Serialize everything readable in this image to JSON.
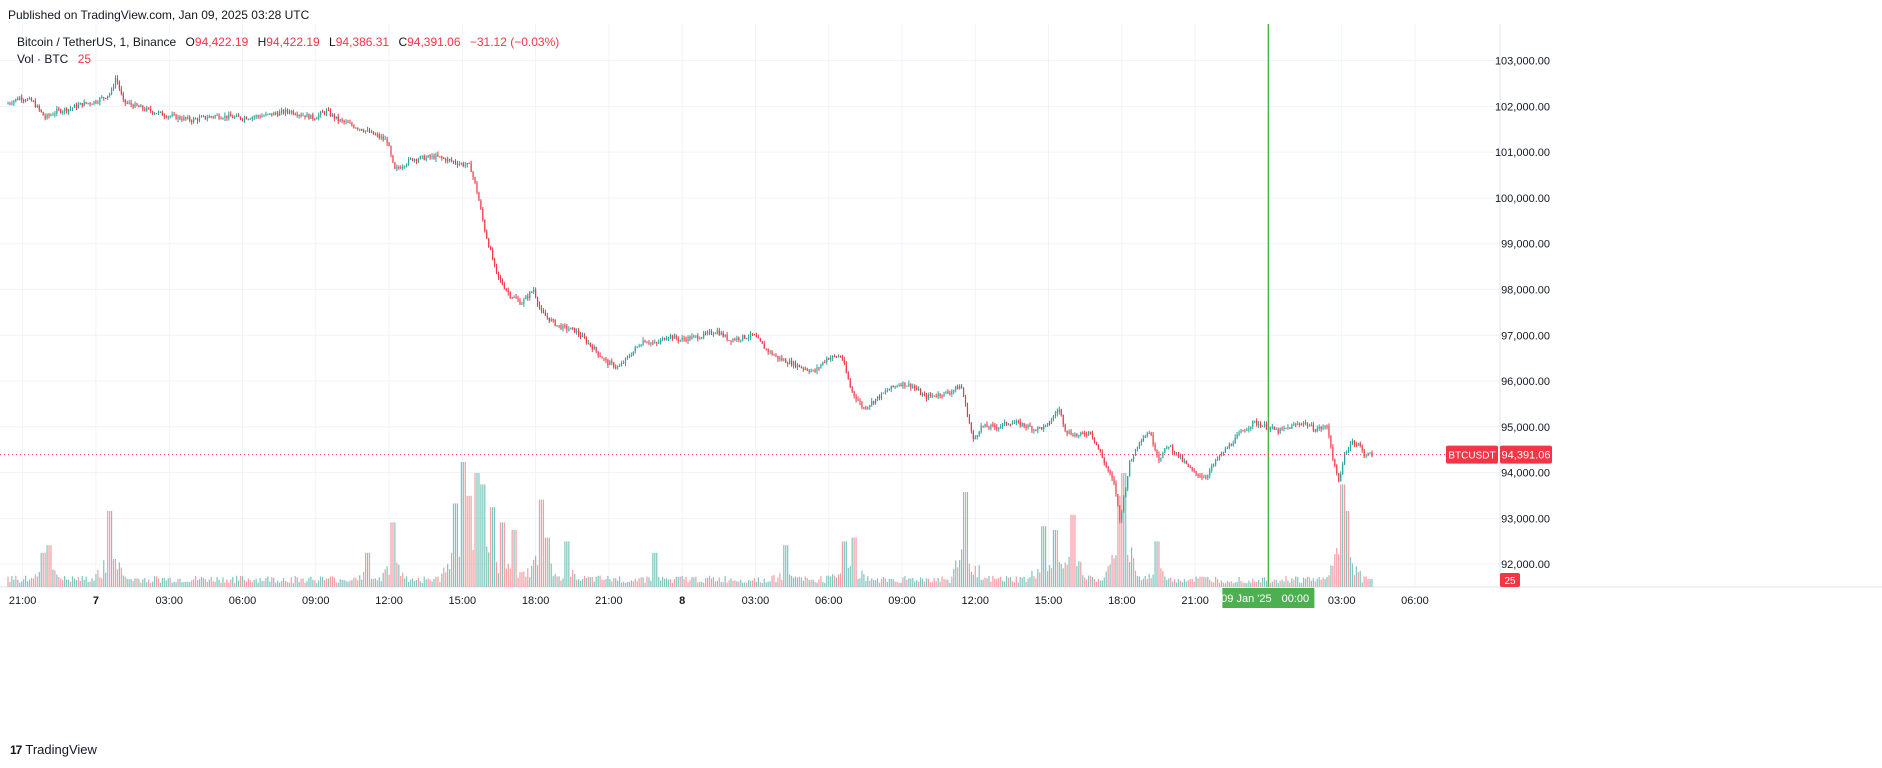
{
  "publish": {
    "text": "Published on TradingView.com, Jan 09, 2025 03:28 UTC"
  },
  "legend": {
    "symbol": "Bitcoin / TetherUS, 1, Binance",
    "o_label": "O",
    "o_value": "94,422.19",
    "h_label": "H",
    "h_value": "94,422.19",
    "l_label": "L",
    "l_value": "94,386.31",
    "c_label": "C",
    "c_value": "94,391.06",
    "change": "−31.12 (−0.03%)",
    "vol_label": "Vol · BTC",
    "vol_value": "25"
  },
  "price_tag": {
    "symbol": "BTCUSDT",
    "value": "94,391.06"
  },
  "vol_tag": "25",
  "crosshair_label": {
    "date": "09 Jan '25",
    "time": "00:00"
  },
  "footer": {
    "logo": "17",
    "brand": "TradingView"
  },
  "colors": {
    "up": "#26a69a",
    "down": "#f23645",
    "crosshair": "#4caf50",
    "grid": "#f0f3fa",
    "volume_up": "#7dc5bd",
    "volume_down": "#f59ba3"
  },
  "chart_data": {
    "type": "line",
    "title": "Bitcoin / TetherUS, 1, Binance",
    "ylabel": "",
    "xlabel": "",
    "ylim": [
      91500,
      103800
    ],
    "y_ticks": [
      {
        "value": 92000,
        "label": "92,000.00"
      },
      {
        "value": 93000,
        "label": "93,000.00"
      },
      {
        "value": 94000,
        "label": "94,000.00"
      },
      {
        "value": 95000,
        "label": "95,000.00"
      },
      {
        "value": 96000,
        "label": "96,000.00"
      },
      {
        "value": 97000,
        "label": "97,000.00"
      },
      {
        "value": 98000,
        "label": "98,000.00"
      },
      {
        "value": 99000,
        "label": "99,000.00"
      },
      {
        "value": 100000,
        "label": "100,000.00"
      },
      {
        "value": 101000,
        "label": "101,000.00"
      },
      {
        "value": 102000,
        "label": "102,000.00"
      },
      {
        "value": 103000,
        "label": "103,000.00"
      }
    ],
    "x_hours_from_start": true,
    "x_ticks": [
      {
        "hour": 0,
        "label": "21:00",
        "bold": false
      },
      {
        "hour": 3,
        "label": "7",
        "bold": true
      },
      {
        "hour": 6,
        "label": "03:00",
        "bold": false
      },
      {
        "hour": 9,
        "label": "06:00",
        "bold": false
      },
      {
        "hour": 12,
        "label": "09:00",
        "bold": false
      },
      {
        "hour": 15,
        "label": "12:00",
        "bold": false
      },
      {
        "hour": 18,
        "label": "15:00",
        "bold": false
      },
      {
        "hour": 21,
        "label": "18:00",
        "bold": false
      },
      {
        "hour": 24,
        "label": "21:00",
        "bold": false
      },
      {
        "hour": 27,
        "label": "8",
        "bold": true
      },
      {
        "hour": 30,
        "label": "03:00",
        "bold": false
      },
      {
        "hour": 33,
        "label": "06:00",
        "bold": false
      },
      {
        "hour": 36,
        "label": "09:00",
        "bold": false
      },
      {
        "hour": 39,
        "label": "12:00",
        "bold": false
      },
      {
        "hour": 42,
        "label": "15:00",
        "bold": false
      },
      {
        "hour": 45,
        "label": "18:00",
        "bold": false
      },
      {
        "hour": 48,
        "label": "21:00",
        "bold": false
      },
      {
        "hour": 54,
        "label": "03:00",
        "bold": false
      },
      {
        "hour": 57,
        "label": "06:00",
        "bold": false
      }
    ],
    "x_range_hours": [
      -0.6,
      60.4
    ],
    "crosshair_hour": 51,
    "last_price": 94391.06,
    "price_series": [
      [
        -0.6,
        102050
      ],
      [
        0,
        102200
      ],
      [
        0.5,
        102100
      ],
      [
        1,
        101750
      ],
      [
        1.5,
        101900
      ],
      [
        2,
        101950
      ],
      [
        2.5,
        102050
      ],
      [
        3,
        102100
      ],
      [
        3.4,
        102200
      ],
      [
        3.7,
        102300
      ],
      [
        3.9,
        102650
      ],
      [
        4.2,
        102100
      ],
      [
        5,
        101950
      ],
      [
        6,
        101800
      ],
      [
        7,
        101700
      ],
      [
        8,
        101800
      ],
      [
        9,
        101750
      ],
      [
        10,
        101800
      ],
      [
        11,
        101900
      ],
      [
        12,
        101750
      ],
      [
        12.5,
        101900
      ],
      [
        13,
        101700
      ],
      [
        14,
        101500
      ],
      [
        15,
        101250
      ],
      [
        15.3,
        100600
      ],
      [
        16,
        100850
      ],
      [
        17,
        100900
      ],
      [
        18,
        100750
      ],
      [
        18.4,
        100700
      ],
      [
        18.7,
        100100
      ],
      [
        19,
        99300
      ],
      [
        19.5,
        98300
      ],
      [
        20,
        97900
      ],
      [
        20.5,
        97700
      ],
      [
        21,
        98000
      ],
      [
        21.3,
        97500
      ],
      [
        22,
        97200
      ],
      [
        22.7,
        97100
      ],
      [
        23.3,
        96800
      ],
      [
        24,
        96400
      ],
      [
        24.5,
        96300
      ],
      [
        25,
        96600
      ],
      [
        25.5,
        96900
      ],
      [
        26,
        96800
      ],
      [
        26.5,
        97000
      ],
      [
        27,
        96900
      ],
      [
        28,
        97000
      ],
      [
        28.5,
        97100
      ],
      [
        29,
        96900
      ],
      [
        30,
        97000
      ],
      [
        30.5,
        96700
      ],
      [
        31,
        96500
      ],
      [
        32,
        96300
      ],
      [
        32.5,
        96200
      ],
      [
        33,
        96500
      ],
      [
        33.6,
        96550
      ],
      [
        34,
        95800
      ],
      [
        34.5,
        95400
      ],
      [
        35,
        95600
      ],
      [
        35.5,
        95800
      ],
      [
        36,
        95950
      ],
      [
        36.5,
        95900
      ],
      [
        37,
        95650
      ],
      [
        37.5,
        95700
      ],
      [
        38,
        95750
      ],
      [
        38.5,
        95900
      ],
      [
        39,
        94700
      ],
      [
        39.3,
        95000
      ],
      [
        40,
        95000
      ],
      [
        40.5,
        95100
      ],
      [
        41,
        95050
      ],
      [
        41.5,
        94950
      ],
      [
        42,
        95000
      ],
      [
        42.5,
        95400
      ],
      [
        42.8,
        94900
      ],
      [
        43.3,
        94800
      ],
      [
        43.8,
        94900
      ],
      [
        44.3,
        94300
      ],
      [
        44.8,
        93700
      ],
      [
        45,
        92950
      ],
      [
        45.4,
        94200
      ],
      [
        45.8,
        94700
      ],
      [
        46.2,
        94900
      ],
      [
        46.6,
        94300
      ],
      [
        47,
        94600
      ],
      [
        47.5,
        94300
      ],
      [
        48,
        94000
      ],
      [
        48.5,
        93900
      ],
      [
        49,
        94300
      ],
      [
        49.5,
        94600
      ],
      [
        50,
        94900
      ],
      [
        50.5,
        95100
      ],
      [
        51,
        95000
      ],
      [
        51.5,
        94900
      ],
      [
        52,
        95000
      ],
      [
        52.5,
        95100
      ],
      [
        53,
        94950
      ],
      [
        53.5,
        95000
      ],
      [
        53.8,
        94100
      ],
      [
        54,
        93800
      ],
      [
        54.2,
        94400
      ],
      [
        54.5,
        94700
      ],
      [
        54.8,
        94600
      ],
      [
        55,
        94400
      ],
      [
        55.3,
        94391
      ]
    ],
    "volume": {
      "base": 20,
      "spikes": [
        [
          0.8,
          90
        ],
        [
          1.1,
          110
        ],
        [
          3.6,
          200
        ],
        [
          14.1,
          90
        ],
        [
          15.2,
          170
        ],
        [
          17.7,
          220
        ],
        [
          18.0,
          330
        ],
        [
          18.3,
          240
        ],
        [
          18.6,
          300
        ],
        [
          18.8,
          270
        ],
        [
          19.2,
          210
        ],
        [
          19.6,
          170
        ],
        [
          20.1,
          150
        ],
        [
          21.2,
          230
        ],
        [
          21.5,
          130
        ],
        [
          22.3,
          120
        ],
        [
          25.9,
          90
        ],
        [
          31.2,
          110
        ],
        [
          33.6,
          120
        ],
        [
          34.0,
          130
        ],
        [
          38.6,
          250
        ],
        [
          41.8,
          160
        ],
        [
          42.3,
          150
        ],
        [
          43.0,
          190
        ],
        [
          44.9,
          240
        ],
        [
          45.1,
          300
        ],
        [
          46.4,
          120
        ],
        [
          54.0,
          270
        ],
        [
          54.2,
          200
        ]
      ]
    }
  }
}
